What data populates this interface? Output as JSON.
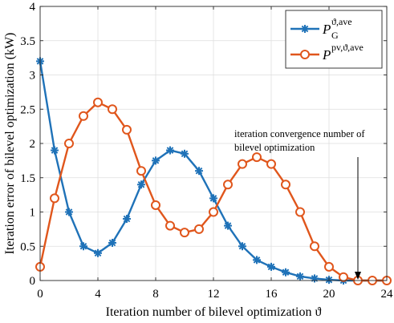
{
  "chart_data": {
    "type": "line",
    "xlabel": "Iteration number of bilevel optimization ϑ",
    "ylabel": "Iteration error of  bilevel optimization (kW)",
    "xlim": [
      0,
      24
    ],
    "ylim": [
      0,
      4
    ],
    "xticks": [
      0,
      4,
      8,
      12,
      16,
      20,
      24
    ],
    "yticks": [
      0,
      0.5,
      1,
      1.5,
      2,
      2.5,
      3,
      3.5,
      4
    ],
    "xtick_labels": [
      "0",
      "4",
      "8",
      "12",
      "16",
      "20",
      "24"
    ],
    "ytick_labels": [
      "0",
      "0.5",
      "1",
      "1.5",
      "2",
      "2.5",
      "3",
      "3.5",
      "4"
    ],
    "grid": true,
    "legend_position": "top-right",
    "annotation": {
      "lines": [
        "iteration convergence number of",
        "bilevel optimization"
      ],
      "target": {
        "x": 22,
        "y": 0
      }
    },
    "series": [
      {
        "legend_main": "P",
        "legend_sub": "G",
        "legend_sup": "ϑ,ave",
        "color": "#1f72b8",
        "marker": "asterisk",
        "x": [
          0,
          1,
          2,
          3,
          4,
          5,
          6,
          7,
          8,
          9,
          10,
          11,
          12,
          13,
          14,
          15,
          16,
          17,
          18,
          19,
          20,
          21,
          22,
          23,
          24
        ],
        "values": [
          3.2,
          1.9,
          1.0,
          0.5,
          0.4,
          0.55,
          0.9,
          1.4,
          1.75,
          1.9,
          1.85,
          1.6,
          1.2,
          0.8,
          0.5,
          0.3,
          0.2,
          0.12,
          0.06,
          0.03,
          0.01,
          0.0,
          0.0,
          0.0,
          0.0
        ]
      },
      {
        "legend_main": "P",
        "legend_sub": "",
        "legend_sup": "pv,ϑ,ave",
        "color": "#e0561c",
        "marker": "circle",
        "x": [
          0,
          1,
          2,
          3,
          4,
          5,
          6,
          7,
          8,
          9,
          10,
          11,
          12,
          13,
          14,
          15,
          16,
          17,
          18,
          19,
          20,
          21,
          22,
          23,
          24
        ],
        "values": [
          0.2,
          1.2,
          2.0,
          2.4,
          2.6,
          2.5,
          2.2,
          1.6,
          1.1,
          0.8,
          0.7,
          0.75,
          1.0,
          1.4,
          1.7,
          1.8,
          1.7,
          1.4,
          1.0,
          0.5,
          0.2,
          0.05,
          0.0,
          0.0,
          0.0
        ]
      }
    ]
  }
}
